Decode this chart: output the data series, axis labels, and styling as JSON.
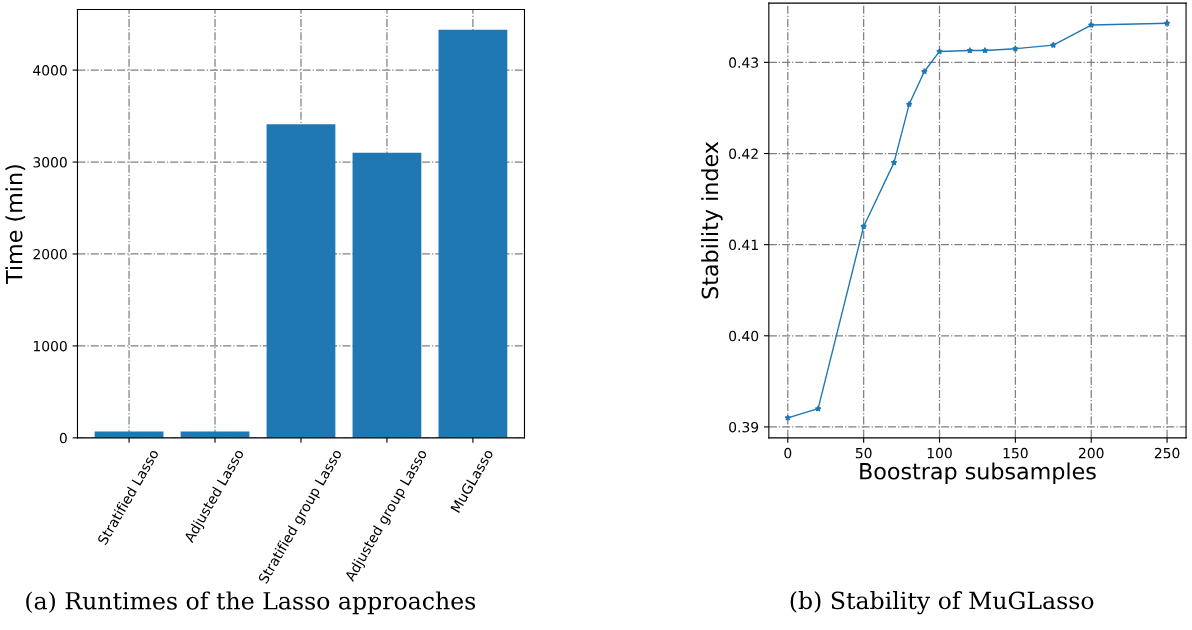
{
  "chart_data": [
    {
      "type": "bar",
      "ylabel": "Time (min)",
      "categories": [
        "Stratified Lasso",
        "Adjusted Lasso",
        "Stratified group Lasso",
        "Adjusted group Lasso",
        "MuGLasso"
      ],
      "values": [
        70,
        70,
        3410,
        3100,
        4440
      ],
      "color": "#1f77b4",
      "ylim": [
        0,
        4660
      ],
      "yticks": [
        0,
        1000,
        2000,
        3000,
        4000
      ],
      "grid": true,
      "annotations": [
        "(a) Runtimes of the Lasso approaches"
      ]
    },
    {
      "type": "line",
      "xlabel": "Boostrap subsamples",
      "ylabel": "Stability index",
      "x": [
        0,
        20,
        50,
        70,
        80,
        90,
        100,
        120,
        130,
        150,
        175,
        200,
        250
      ],
      "values": [
        0.391,
        0.392,
        0.412,
        0.419,
        0.4254,
        0.429,
        0.4312,
        0.4313,
        0.4313,
        0.4315,
        0.4319,
        0.4341,
        0.4343
      ],
      "color": "#1f77b4",
      "marker": "star",
      "line_style": "solid",
      "xlim": [
        -12.5,
        262.5
      ],
      "xticks": [
        0,
        50,
        100,
        150,
        200,
        250
      ],
      "ylim": [
        0.3888,
        0.4365
      ],
      "yticks": [
        0.39,
        {
          "value": 0.4,
          "label": "0.40"
        },
        0.41,
        0.42,
        0.43
      ],
      "grid": true,
      "annotations": [
        "(b) Stability of MuGLasso"
      ]
    }
  ]
}
